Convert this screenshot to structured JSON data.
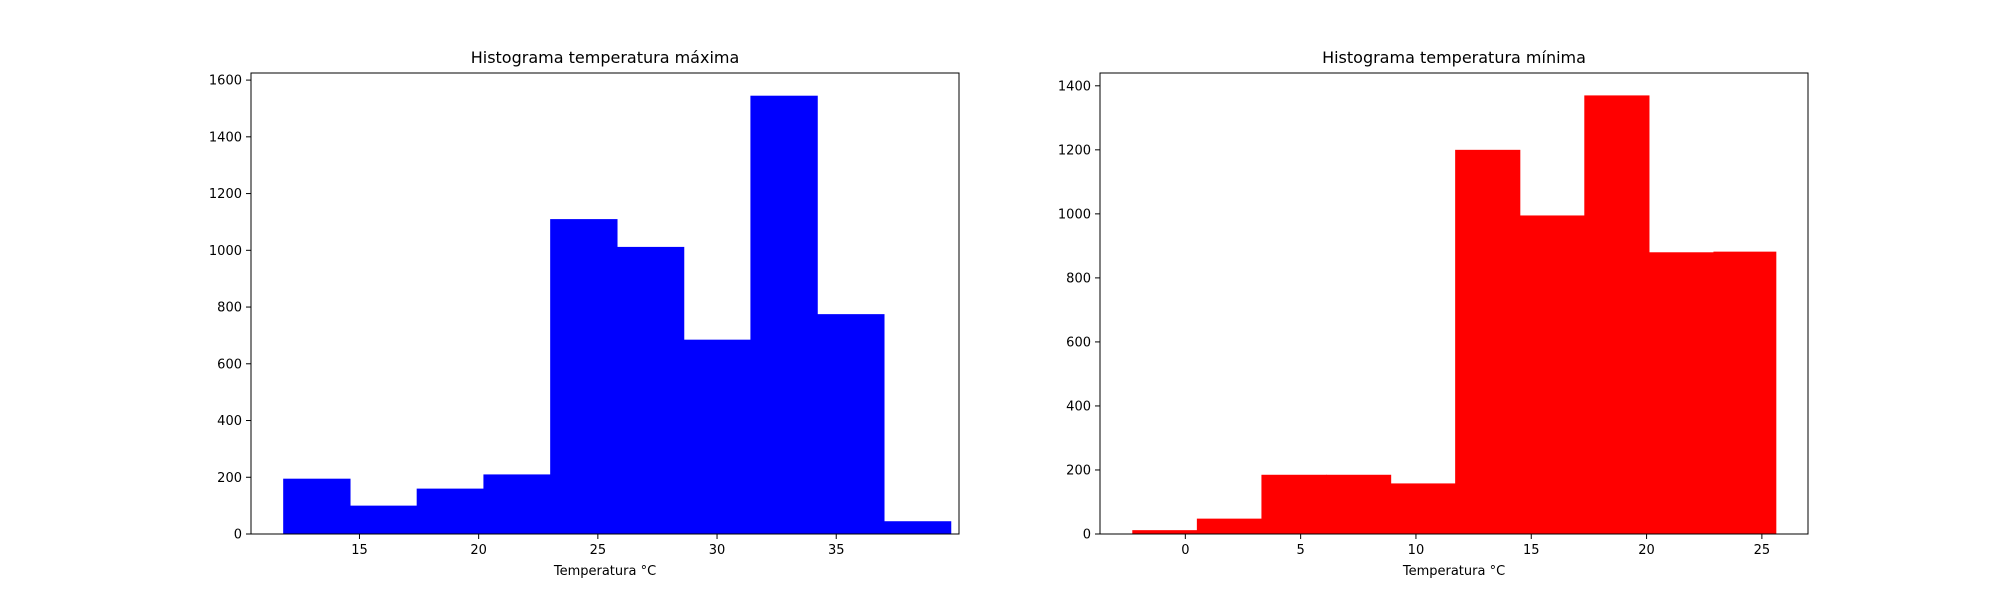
{
  "chart_data": [
    {
      "type": "bar",
      "title": "Histograma temperatura máxima",
      "xlabel": "Temperatura °C",
      "ylabel": "",
      "color": "#0000ff",
      "xlim": [
        10.45,
        40.15
      ],
      "ylim": [
        0,
        1625
      ],
      "xticks": [
        15,
        20,
        25,
        30,
        35
      ],
      "yticks": [
        0,
        200,
        400,
        600,
        800,
        1000,
        1200,
        1400,
        1600
      ],
      "bin_edges": [
        11.8,
        14.6,
        17.4,
        20.2,
        23.0,
        25.8,
        28.6,
        31.4,
        34.2,
        37.0,
        39.8
      ],
      "values": [
        195,
        100,
        160,
        210,
        1110,
        1012,
        685,
        1545,
        775,
        45
      ],
      "grid": false,
      "legend": "none"
    },
    {
      "type": "bar",
      "title": "Histograma temperatura mínima",
      "xlabel": "Temperatura °C",
      "ylabel": "",
      "color": "#ff0000",
      "xlim": [
        -3.7,
        27.0
      ],
      "ylim": [
        0,
        1440
      ],
      "xticks": [
        0,
        5,
        10,
        15,
        20,
        25
      ],
      "yticks": [
        0,
        200,
        400,
        600,
        800,
        1000,
        1200,
        1400
      ],
      "bin_edges": [
        -2.3,
        0.5,
        3.3,
        6.1,
        8.9,
        11.7,
        14.5,
        17.3,
        20.1,
        22.9,
        25.6
      ],
      "values": [
        12,
        48,
        185,
        185,
        158,
        1200,
        995,
        1370,
        880,
        882
      ],
      "grid": false,
      "legend": "none"
    }
  ]
}
